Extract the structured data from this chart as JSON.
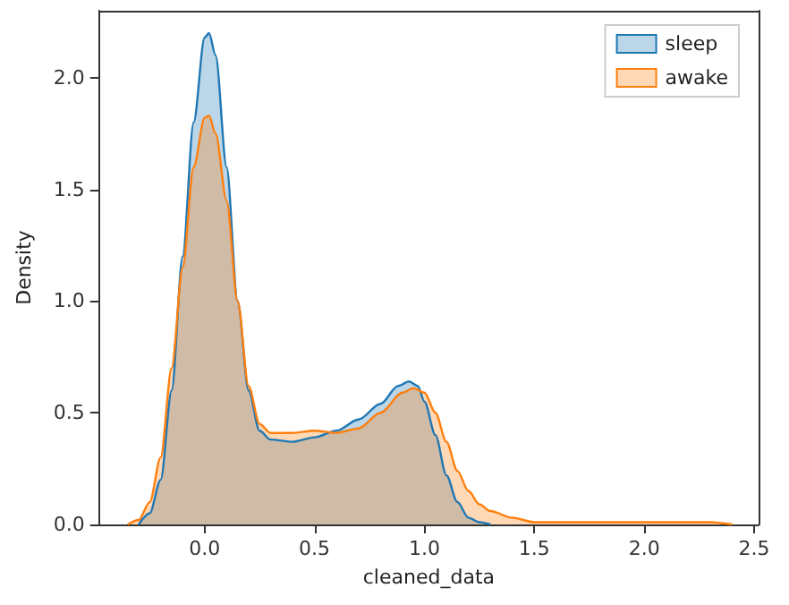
{
  "chart_data": {
    "type": "area",
    "xlabel": "cleaned_data",
    "ylabel": "Density",
    "legend": "top right",
    "grid": false,
    "marker": "none",
    "line_style": "solid",
    "xlim": [
      -0.48,
      2.52
    ],
    "ylim": [
      0,
      2.3
    ],
    "xticks": [
      {
        "value": 0,
        "label": "0.0"
      },
      {
        "value": 0.5,
        "label": "0.5"
      },
      {
        "value": 1,
        "label": "1.0"
      },
      {
        "value": 1.5,
        "label": "1.5"
      },
      {
        "value": 2,
        "label": "2.0"
      },
      {
        "value": 2.5,
        "label": "2.5"
      }
    ],
    "yticks": [
      {
        "value": 0,
        "label": "0.0"
      },
      {
        "value": 0.5,
        "label": "0.5"
      },
      {
        "value": 1,
        "label": "1.0"
      },
      {
        "value": 1.5,
        "label": "1.5"
      },
      {
        "value": 2,
        "label": "2.0"
      }
    ],
    "series": [
      {
        "name": "sleep",
        "color": "#1f77b4",
        "x": [
          -0.3,
          -0.25,
          -0.2,
          -0.15,
          -0.1,
          -0.05,
          0,
          0.02,
          0.05,
          0.1,
          0.15,
          0.2,
          0.25,
          0.3,
          0.4,
          0.5,
          0.6,
          0.7,
          0.8,
          0.88,
          0.93,
          0.97,
          1.0,
          1.05,
          1.1,
          1.15,
          1.2,
          1.25,
          1.3
        ],
        "values": [
          0,
          0.05,
          0.2,
          0.6,
          1.2,
          1.8,
          2.18,
          2.2,
          2.1,
          1.6,
          1.0,
          0.6,
          0.42,
          0.38,
          0.37,
          0.39,
          0.42,
          0.47,
          0.54,
          0.62,
          0.64,
          0.62,
          0.55,
          0.4,
          0.22,
          0.1,
          0.03,
          0.01,
          0
        ]
      },
      {
        "name": "awake",
        "color": "#ff7f0e",
        "x": [
          -0.35,
          -0.3,
          -0.25,
          -0.2,
          -0.15,
          -0.1,
          -0.05,
          0,
          0.02,
          0.05,
          0.1,
          0.15,
          0.2,
          0.25,
          0.3,
          0.4,
          0.5,
          0.6,
          0.7,
          0.8,
          0.9,
          0.95,
          1.0,
          1.05,
          1.1,
          1.15,
          1.2,
          1.25,
          1.3,
          1.4,
          1.5,
          1.7,
          2.0,
          2.3,
          2.4
        ],
        "values": [
          0,
          0.02,
          0.1,
          0.3,
          0.7,
          1.15,
          1.6,
          1.82,
          1.83,
          1.75,
          1.45,
          1.0,
          0.62,
          0.45,
          0.41,
          0.41,
          0.42,
          0.41,
          0.43,
          0.5,
          0.59,
          0.61,
          0.59,
          0.5,
          0.37,
          0.24,
          0.15,
          0.09,
          0.06,
          0.03,
          0.01,
          0.01,
          0.01,
          0.01,
          0
        ]
      }
    ]
  }
}
